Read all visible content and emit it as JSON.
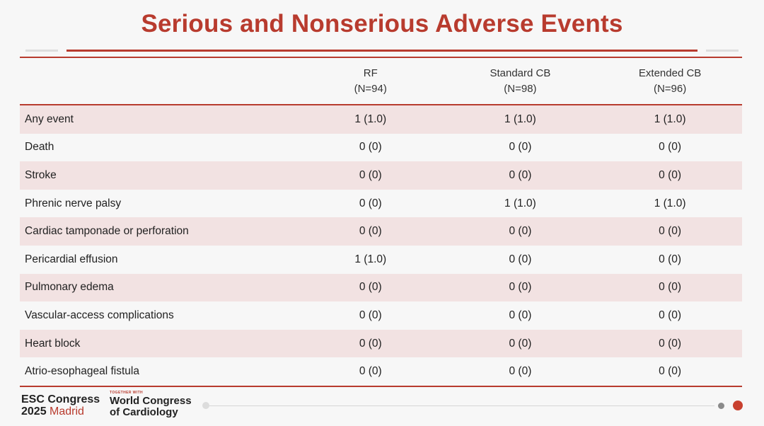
{
  "title": "Serious and Nonserious Adverse Events",
  "columns": [
    {
      "name": "RF",
      "n": "(N=94)"
    },
    {
      "name": "Standard CB",
      "n": "(N=98)"
    },
    {
      "name": "Extended CB",
      "n": "(N=96)"
    }
  ],
  "rows": [
    {
      "label": "Any event",
      "values": [
        "1 (1.0)",
        "1 (1.0)",
        "1 (1.0)"
      ]
    },
    {
      "label": "Death",
      "values": [
        "0 (0)",
        "0 (0)",
        "0 (0)"
      ]
    },
    {
      "label": "Stroke",
      "values": [
        "0 (0)",
        "0 (0)",
        "0 (0)"
      ]
    },
    {
      "label": "Phrenic nerve palsy",
      "values": [
        "0 (0)",
        "1 (1.0)",
        "1 (1.0)"
      ]
    },
    {
      "label": "Cardiac tamponade or perforation",
      "values": [
        "0 (0)",
        "0 (0)",
        "0 (0)"
      ]
    },
    {
      "label": "Pericardial effusion",
      "values": [
        "1 (1.0)",
        "0 (0)",
        "0 (0)"
      ]
    },
    {
      "label": "Pulmonary edema",
      "values": [
        "0 (0)",
        "0 (0)",
        "0 (0)"
      ]
    },
    {
      "label": "Vascular-access complications",
      "values": [
        "0 (0)",
        "0 (0)",
        "0 (0)"
      ]
    },
    {
      "label": "Heart block",
      "values": [
        "0 (0)",
        "0 (0)",
        "0 (0)"
      ]
    },
    {
      "label": "Atrio-esophageal fistula",
      "values": [
        "0 (0)",
        "0 (0)",
        "0 (0)"
      ]
    }
  ],
  "footer": {
    "esc_line1": "ESC Congress",
    "esc_year": "2025",
    "esc_city": "Madrid",
    "together_with": "TOGETHER WITH",
    "wcc_line1": "World Congress",
    "wcc_line2": "of Cardiology"
  },
  "colors": {
    "accent": "#b83b2e",
    "row_shade": "#f2e2e2",
    "background": "#f7f7f7"
  }
}
